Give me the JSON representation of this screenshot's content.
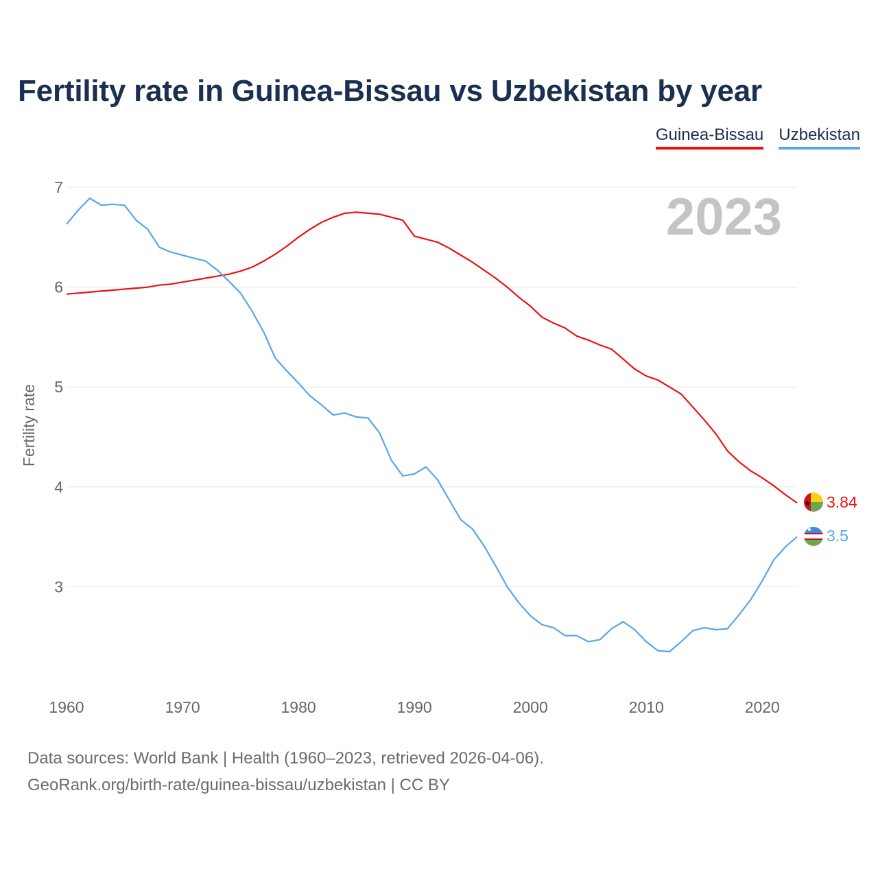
{
  "page": {
    "title": "Fertility rate in Guinea-Bissau vs Uzbekistan by year",
    "source_line1": "Data sources: World Bank | Health (1960–2023, retrieved 2026-04-06).",
    "source_line2": "GeoRank.org/birth-rate/guinea-bissau/uzbekistan | CC BY"
  },
  "legend": [
    {
      "name": "Guinea-Bissau",
      "color": "#ee1111"
    },
    {
      "name": "Uzbekistan",
      "color": "#5aa5e6"
    }
  ],
  "chart_data": {
    "type": "line",
    "title": "Fertility rate in Guinea-Bissau vs Uzbekistan by year",
    "xlabel": "",
    "ylabel": "Fertility rate",
    "xlim": [
      1960,
      2023
    ],
    "ylim": [
      2,
      7
    ],
    "x_ticks": [
      1960,
      1970,
      1980,
      1990,
      2000,
      2010,
      2020
    ],
    "y_ticks": [
      3,
      4,
      5,
      6,
      7
    ],
    "grid": true,
    "year_label": "2023",
    "x": [
      1960,
      1961,
      1962,
      1963,
      1964,
      1965,
      1966,
      1967,
      1968,
      1969,
      1970,
      1971,
      1972,
      1973,
      1974,
      1975,
      1976,
      1977,
      1978,
      1979,
      1980,
      1981,
      1982,
      1983,
      1984,
      1985,
      1986,
      1987,
      1988,
      1989,
      1990,
      1991,
      1992,
      1993,
      1994,
      1995,
      1996,
      1997,
      1998,
      1999,
      2000,
      2001,
      2002,
      2003,
      2004,
      2005,
      2006,
      2007,
      2008,
      2009,
      2010,
      2011,
      2012,
      2013,
      2014,
      2015,
      2016,
      2017,
      2018,
      2019,
      2020,
      2021,
      2022,
      2023
    ],
    "series": [
      {
        "name": "Guinea-Bissau",
        "color": "#ee1111",
        "end_label": "3.84",
        "values": [
          5.93,
          5.94,
          5.95,
          5.96,
          5.97,
          5.98,
          5.99,
          6.0,
          6.02,
          6.03,
          6.05,
          6.07,
          6.09,
          6.11,
          6.13,
          6.16,
          6.2,
          6.26,
          6.33,
          6.41,
          6.5,
          6.58,
          6.65,
          6.7,
          6.74,
          6.75,
          6.74,
          6.73,
          6.7,
          6.67,
          6.51,
          6.48,
          6.45,
          6.39,
          6.32,
          6.25,
          6.17,
          6.09,
          6.0,
          5.9,
          5.81,
          5.7,
          5.64,
          5.59,
          5.51,
          5.47,
          5.42,
          5.38,
          5.28,
          5.18,
          5.11,
          5.07,
          5.0,
          4.93,
          4.8,
          4.67,
          4.53,
          4.36,
          4.25,
          4.16,
          4.09,
          4.01,
          3.92,
          3.84
        ]
      },
      {
        "name": "Uzbekistan",
        "color": "#5aa5e6",
        "end_label": "3.5",
        "values": [
          6.63,
          6.77,
          6.89,
          6.82,
          6.83,
          6.82,
          6.67,
          6.58,
          6.4,
          6.35,
          6.32,
          6.29,
          6.26,
          6.17,
          6.06,
          5.94,
          5.76,
          5.55,
          5.29,
          5.16,
          5.04,
          4.91,
          4.82,
          4.72,
          4.74,
          4.7,
          4.69,
          4.54,
          4.27,
          4.11,
          4.13,
          4.2,
          4.07,
          3.87,
          3.67,
          3.58,
          3.41,
          3.21,
          3.0,
          2.84,
          2.71,
          2.62,
          2.59,
          2.51,
          2.51,
          2.45,
          2.47,
          2.58,
          2.65,
          2.57,
          2.45,
          2.36,
          2.35,
          2.45,
          2.56,
          2.59,
          2.57,
          2.58,
          2.72,
          2.87,
          3.06,
          3.27,
          3.4,
          3.5
        ]
      }
    ]
  }
}
